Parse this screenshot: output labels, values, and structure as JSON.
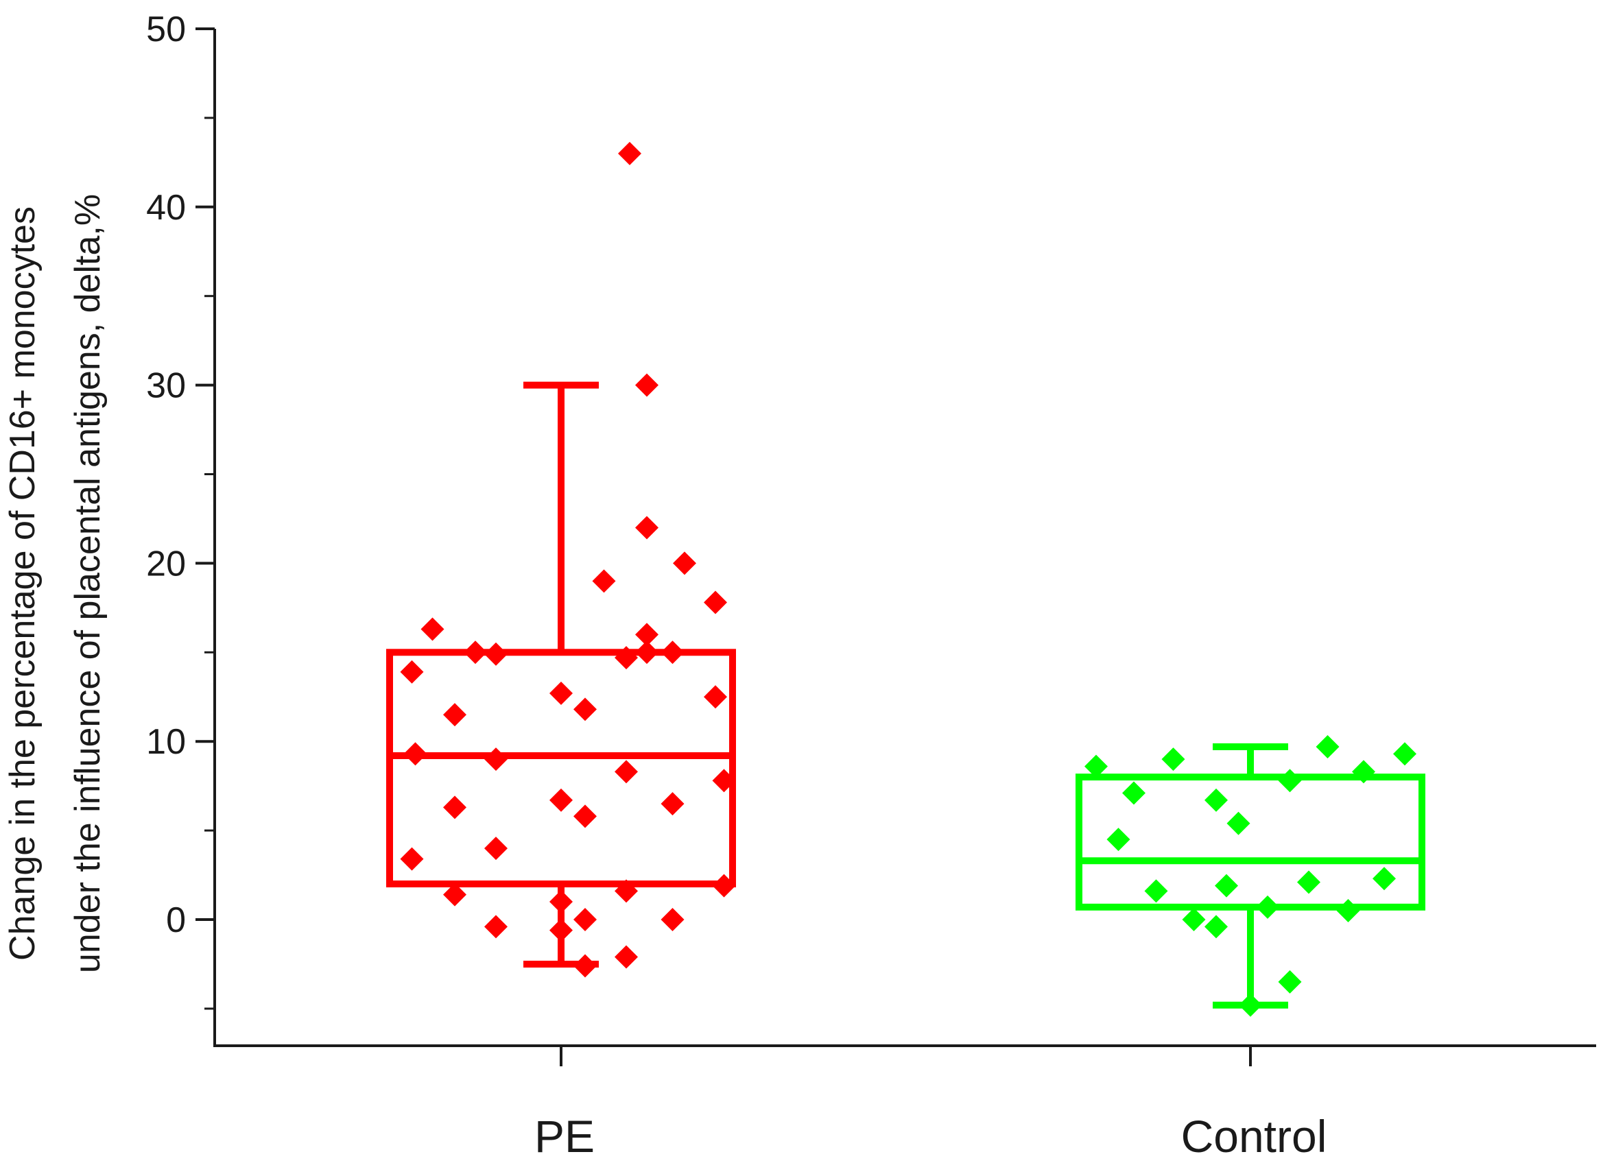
{
  "chart_data": {
    "type": "box",
    "title": "",
    "ylabel_lines": [
      "Change in the percentage of CD16+ monocytes",
      "under the influence of placental antigens, delta,%"
    ],
    "xlabel": "",
    "ylim": [
      -7,
      50
    ],
    "yticks": [
      0,
      10,
      20,
      30,
      40,
      50
    ],
    "yminor_step": 5,
    "categories": [
      "PE",
      "Control"
    ],
    "groups": [
      {
        "name": "PE",
        "color": "#ff0000",
        "q1": 2,
        "median": 9.2,
        "q3": 15,
        "whisker_low": -2.5,
        "whisker_high": 30,
        "points": [
          {
            "x": 0.4,
            "y": 43
          },
          {
            "x": 0.5,
            "y": 30
          },
          {
            "x": 0.5,
            "y": 22
          },
          {
            "x": 0.5,
            "y": 16
          },
          {
            "x": 0.72,
            "y": 20
          },
          {
            "x": 0.25,
            "y": 19
          },
          {
            "x": 0.9,
            "y": 17.8
          },
          {
            "x": -0.75,
            "y": 16.3
          },
          {
            "x": -0.5,
            "y": 15
          },
          {
            "x": -0.38,
            "y": 14.9
          },
          {
            "x": 0.38,
            "y": 14.7
          },
          {
            "x": 0.5,
            "y": 15
          },
          {
            "x": 0.65,
            "y": 15
          },
          {
            "x": -0.87,
            "y": 13.9
          },
          {
            "x": 0.0,
            "y": 12.7
          },
          {
            "x": 0.14,
            "y": 11.8
          },
          {
            "x": -0.62,
            "y": 11.5
          },
          {
            "x": 0.9,
            "y": 12.5
          },
          {
            "x": -0.85,
            "y": 9.3
          },
          {
            "x": -0.38,
            "y": 9
          },
          {
            "x": 0.38,
            "y": 8.3
          },
          {
            "x": 0.95,
            "y": 7.8
          },
          {
            "x": 0.0,
            "y": 6.7
          },
          {
            "x": -0.62,
            "y": 6.3
          },
          {
            "x": 0.14,
            "y": 5.8
          },
          {
            "x": 0.65,
            "y": 6.5
          },
          {
            "x": -0.38,
            "y": 4
          },
          {
            "x": -0.87,
            "y": 3.4
          },
          {
            "x": -0.62,
            "y": 1.4
          },
          {
            "x": 0.38,
            "y": 1.6
          },
          {
            "x": 0.95,
            "y": 1.9
          },
          {
            "x": -0.38,
            "y": -0.4
          },
          {
            "x": 0.0,
            "y": 1
          },
          {
            "x": 0.0,
            "y": -0.6
          },
          {
            "x": 0.14,
            "y": 0
          },
          {
            "x": 0.65,
            "y": 0
          },
          {
            "x": 0.38,
            "y": -2.1
          },
          {
            "x": 0.14,
            "y": -2.6
          }
        ]
      },
      {
        "name": "Control",
        "color": "#00ff00",
        "q1": 0.7,
        "median": 3.3,
        "q3": 8,
        "whisker_low": -4.8,
        "whisker_high": 9.7,
        "points": [
          {
            "x": -0.9,
            "y": 8.6
          },
          {
            "x": -0.45,
            "y": 9
          },
          {
            "x": 0.45,
            "y": 9.7
          },
          {
            "x": 0.9,
            "y": 9.3
          },
          {
            "x": -0.68,
            "y": 7.1
          },
          {
            "x": -0.2,
            "y": 6.7
          },
          {
            "x": 0.23,
            "y": 7.8
          },
          {
            "x": 0.66,
            "y": 8.3
          },
          {
            "x": -0.77,
            "y": 4.5
          },
          {
            "x": -0.07,
            "y": 5.4
          },
          {
            "x": -0.55,
            "y": 1.6
          },
          {
            "x": -0.14,
            "y": 1.9
          },
          {
            "x": 0.34,
            "y": 2.1
          },
          {
            "x": 0.78,
            "y": 2.3
          },
          {
            "x": 0.1,
            "y": 0.7
          },
          {
            "x": 0.57,
            "y": 0.5
          },
          {
            "x": -0.33,
            "y": 0
          },
          {
            "x": -0.2,
            "y": -0.4
          },
          {
            "x": 0.23,
            "y": -3.5
          },
          {
            "x": 0.0,
            "y": -4.8
          }
        ]
      }
    ]
  }
}
